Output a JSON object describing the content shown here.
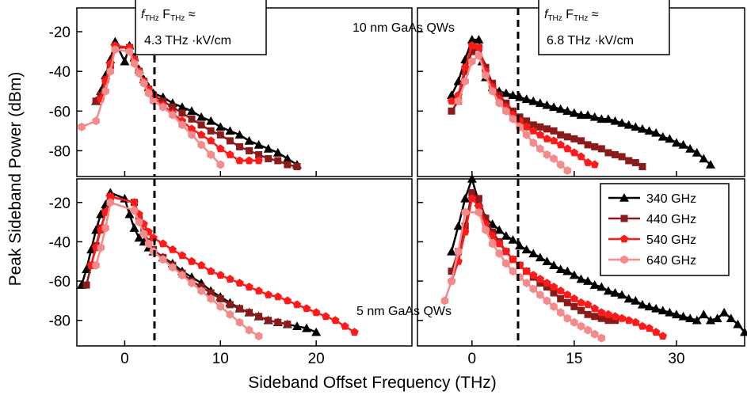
{
  "figure": {
    "xlabel": "Sideband Offset Frequency (THz)",
    "ylabel": "Peak Sideband Power (dBm)",
    "label_top": "10 nm GaAs QWs",
    "label_bottom": "5 nm GaAs QWs",
    "box_left_prefix_f": "f",
    "box_left_sub1": "THz",
    "box_left_F": " F",
    "box_left_sub2": "THz",
    "box_left_approx": " ≈",
    "box_left_value": "4.3 THz  ·kV/cm",
    "box_right_prefix_f": "f",
    "box_right_sub1": "THz",
    "box_right_F": " F",
    "box_right_sub2": "THz",
    "box_right_approx": " ≈",
    "box_right_value": "6.8 THz  ·kV/cm",
    "legend": [
      "340 GHz",
      "440 GHz",
      "540 GHz",
      "640 GHz"
    ],
    "colors": {
      "340 GHz": "#000000",
      "440 GHz": "#8b1a1a",
      "540 GHz": "#ff1a1a",
      "640 GHz": "#f48a8a"
    },
    "markers": {
      "340 GHz": "triangle",
      "440 GHz": "square",
      "540 GHz": "pentagon",
      "640 GHz": "hexagon"
    },
    "left_xticks": [
      "0",
      "10",
      "20"
    ],
    "right_xticks": [
      "0",
      "15",
      "30"
    ],
    "yticks": [
      "-20",
      "-40",
      "-60",
      "-80"
    ]
  },
  "chart_data": [
    {
      "type": "line",
      "panel": "top-left",
      "xlim": [
        -5,
        30
      ],
      "ylim": [
        -93,
        -8
      ],
      "xlabel": "",
      "ylabel": "",
      "series": [
        {
          "name": "340 GHz",
          "x": [
            -3,
            -2.5,
            -2,
            -1.5,
            -1,
            0,
            0.5,
            1,
            1.5,
            2,
            2.5,
            3,
            4,
            5,
            6,
            7,
            8,
            9,
            10,
            11,
            12,
            13,
            14,
            15,
            16,
            17,
            18
          ],
          "y": [
            -55,
            -50,
            -42,
            -34,
            -25,
            -35,
            -27,
            -33,
            -39,
            -44,
            -48,
            -51,
            -53,
            -56,
            -58,
            -60,
            -63,
            -65,
            -68,
            -70,
            -72,
            -75,
            -77,
            -79,
            -81,
            -84,
            -87
          ]
        },
        {
          "name": "440 GHz",
          "x": [
            -3,
            -2.5,
            -2,
            -1.5,
            -1,
            0.5,
            1,
            1.5,
            2,
            2.5,
            3,
            4,
            5,
            6,
            7,
            8,
            9,
            10,
            11,
            12,
            13,
            14,
            15,
            16,
            17,
            18
          ],
          "y": [
            -55,
            -52,
            -44,
            -37,
            -28,
            -28,
            -34,
            -40,
            -45,
            -49,
            -52,
            -55,
            -58,
            -61,
            -64,
            -67,
            -70,
            -72,
            -75,
            -78,
            -80,
            -82,
            -84,
            -85,
            -87,
            -88
          ]
        },
        {
          "name": "540 GHz",
          "x": [
            -2.5,
            -2,
            -1.5,
            -1,
            0.5,
            1,
            1.5,
            2,
            2.5,
            3,
            4,
            5,
            6,
            7,
            8,
            9,
            10,
            11,
            12,
            13,
            14
          ],
          "y": [
            -54,
            -45,
            -36,
            -27,
            -28,
            -34,
            -40,
            -45,
            -49,
            -53,
            -57,
            -61,
            -65,
            -69,
            -72,
            -75,
            -79,
            -82,
            -85,
            -85,
            -85
          ]
        },
        {
          "name": "640 GHz",
          "x": [
            -4.5,
            -3,
            -2,
            -1.5,
            -1,
            0.5,
            1,
            1.5,
            2,
            2.5,
            3,
            4,
            5,
            6,
            7,
            8,
            9,
            10
          ],
          "y": [
            -68,
            -65,
            -50,
            -40,
            -29,
            -30,
            -36,
            -41,
            -46,
            -51,
            -55,
            -58,
            -62,
            -67,
            -72,
            -77,
            -82,
            -87
          ]
        }
      ]
    },
    {
      "type": "line",
      "panel": "top-right",
      "xlim": [
        -8,
        40
      ],
      "ylim": [
        -93,
        -8
      ],
      "xlabel": "",
      "ylabel": "",
      "series": [
        {
          "name": "340 GHz",
          "x": [
            -3,
            -2,
            -1,
            0,
            1,
            1.5,
            2,
            3,
            4,
            5,
            6,
            7,
            8,
            9,
            10,
            11,
            12,
            13,
            14,
            15,
            16,
            17,
            18,
            19,
            20,
            21,
            22,
            23,
            24,
            25,
            26,
            27,
            28,
            29,
            30,
            31,
            32,
            33,
            34,
            35
          ],
          "y": [
            -52,
            -45,
            -34,
            -24,
            -24,
            -35,
            -43,
            -48,
            -50,
            -51,
            -52,
            -53,
            -54,
            -55,
            -56,
            -57,
            -58,
            -59,
            -60,
            -61,
            -62,
            -62,
            -63,
            -64,
            -64,
            -65,
            -66,
            -67,
            -68,
            -69,
            -70,
            -71,
            -73,
            -74,
            -76,
            -77,
            -79,
            -81,
            -84,
            -87
          ]
        },
        {
          "name": "440 GHz",
          "x": [
            -3,
            -2,
            -1,
            0,
            1,
            2,
            3,
            4,
            5,
            6,
            7,
            8,
            9,
            10,
            11,
            12,
            13,
            14,
            15,
            16,
            17,
            18,
            19,
            20,
            21,
            22,
            23,
            24,
            25
          ],
          "y": [
            -60,
            -55,
            -40,
            -30,
            -28,
            -38,
            -46,
            -52,
            -56,
            -60,
            -63,
            -65,
            -67,
            -68,
            -69,
            -70,
            -72,
            -73,
            -74,
            -75,
            -77,
            -78,
            -79,
            -81,
            -82,
            -83,
            -85,
            -86,
            -88
          ]
        },
        {
          "name": "540 GHz",
          "x": [
            -3,
            -2,
            -1,
            0,
            1,
            2,
            3,
            4,
            5,
            6,
            7,
            8,
            9,
            10,
            11,
            12,
            13,
            14,
            15,
            16,
            17,
            18
          ],
          "y": [
            -55,
            -52,
            -38,
            -27,
            -28,
            -40,
            -48,
            -54,
            -58,
            -62,
            -65,
            -68,
            -70,
            -72,
            -74,
            -75,
            -77,
            -79,
            -81,
            -83,
            -86,
            -87
          ]
        },
        {
          "name": "640 GHz",
          "x": [
            -2,
            -1,
            0,
            1,
            2,
            3,
            4,
            5,
            6,
            7,
            8,
            9,
            10,
            11,
            12,
            13,
            14
          ],
          "y": [
            -55,
            -45,
            -35,
            -32,
            -42,
            -50,
            -56,
            -60,
            -64,
            -68,
            -72,
            -76,
            -79,
            -82,
            -84,
            -87,
            -90
          ]
        }
      ]
    },
    {
      "type": "line",
      "panel": "bottom-left",
      "xlim": [
        -5,
        30
      ],
      "ylim": [
        -93,
        -8
      ],
      "xlabel": "",
      "ylabel": "",
      "series": [
        {
          "name": "340 GHz",
          "x": [
            -4.5,
            -4,
            -3.5,
            -3,
            -2.5,
            -2,
            -1.5,
            0,
            0.5,
            1,
            1.5,
            2,
            2.5,
            3,
            4,
            5,
            6,
            7,
            8,
            9,
            10,
            11,
            12,
            13,
            14,
            15,
            16,
            17,
            18,
            19,
            20
          ],
          "y": [
            -62,
            -54,
            -44,
            -34,
            -26,
            -21,
            -15,
            -18,
            -26,
            -33,
            -38,
            -40,
            -43,
            -45,
            -48,
            -51,
            -55,
            -58,
            -61,
            -65,
            -68,
            -71,
            -74,
            -76,
            -78,
            -80,
            -81,
            -82,
            -83,
            -84,
            -86
          ]
        },
        {
          "name": "440 GHz",
          "x": [
            -4,
            -3.5,
            -3,
            -2.5,
            -2,
            -1.5,
            1,
            1.5,
            2,
            2.5,
            3,
            4,
            5,
            6,
            7,
            8,
            9,
            10,
            11,
            12,
            13,
            14,
            15,
            16,
            17
          ],
          "y": [
            -62,
            -52,
            -42,
            -33,
            -25,
            -17,
            -20,
            -28,
            -35,
            -40,
            -44,
            -48,
            -52,
            -56,
            -60,
            -63,
            -66,
            -69,
            -72,
            -74,
            -76,
            -78,
            -80,
            -81,
            -82
          ]
        },
        {
          "name": "540 GHz",
          "x": [
            -3.5,
            -3,
            -2.5,
            -2,
            -1.5,
            1,
            1.5,
            2,
            2.5,
            3,
            4,
            5,
            6,
            7,
            8,
            9,
            10,
            11,
            12,
            13,
            14,
            15,
            16,
            17,
            18,
            19,
            20,
            21,
            22,
            23,
            24
          ],
          "y": [
            -52,
            -43,
            -34,
            -25,
            -17,
            -20,
            -26,
            -31,
            -35,
            -38,
            -41,
            -44,
            -47,
            -50,
            -52,
            -55,
            -57,
            -59,
            -61,
            -63,
            -65,
            -67,
            -68,
            -70,
            -72,
            -74,
            -76,
            -78,
            -80,
            -83,
            -86
          ]
        },
        {
          "name": "640 GHz",
          "x": [
            -3,
            -2.5,
            -2,
            -1.5,
            1,
            1.5,
            2,
            2.5,
            3,
            4,
            5,
            6,
            7,
            8,
            9,
            10,
            11,
            12,
            13,
            14
          ],
          "y": [
            -52,
            -43,
            -33,
            -20,
            -24,
            -30,
            -36,
            -41,
            -45,
            -49,
            -53,
            -57,
            -61,
            -65,
            -69,
            -73,
            -77,
            -81,
            -85,
            -88
          ]
        }
      ]
    },
    {
      "type": "line",
      "panel": "bottom-right",
      "xlim": [
        -8,
        40
      ],
      "ylim": [
        -93,
        -8
      ],
      "xlabel": "",
      "ylabel": "",
      "series": [
        {
          "name": "340 GHz",
          "x": [
            -3,
            -2,
            -1,
            0,
            1,
            2,
            3,
            4,
            5,
            6,
            7,
            8,
            9,
            10,
            11,
            12,
            13,
            14,
            15,
            16,
            17,
            18,
            19,
            20,
            21,
            22,
            23,
            24,
            25,
            26,
            27,
            28,
            29,
            30,
            31,
            32,
            33,
            34,
            35,
            36,
            37,
            38,
            39,
            40
          ],
          "y": [
            -45,
            -32,
            -18,
            -8,
            -20,
            -28,
            -31,
            -34,
            -37,
            -39,
            -42,
            -44,
            -46,
            -48,
            -50,
            -52,
            -54,
            -55,
            -57,
            -59,
            -60,
            -62,
            -63,
            -65,
            -66,
            -67,
            -69,
            -70,
            -72,
            -73,
            -74,
            -75,
            -76,
            -77,
            -78,
            -79,
            -80,
            -77,
            -80,
            -79,
            -76,
            -79,
            -82,
            -86
          ]
        },
        {
          "name": "440 GHz",
          "x": [
            -3,
            -2,
            -1,
            0,
            1,
            2,
            3,
            4,
            5,
            6,
            7,
            8,
            9,
            10,
            11,
            12,
            13,
            14,
            15,
            16,
            17,
            18,
            19,
            20,
            21
          ],
          "y": [
            -55,
            -45,
            -32,
            -15,
            -18,
            -28,
            -35,
            -40,
            -45,
            -49,
            -52,
            -55,
            -58,
            -61,
            -63,
            -66,
            -69,
            -71,
            -73,
            -75,
            -77,
            -78,
            -79,
            -80,
            -80
          ]
        },
        {
          "name": "540 GHz",
          "x": [
            -3,
            -2,
            -1,
            0,
            1,
            2,
            3,
            4,
            5,
            6,
            7,
            8,
            9,
            10,
            11,
            12,
            13,
            14,
            15,
            16,
            17,
            18,
            19,
            20,
            21,
            22,
            23,
            24,
            25,
            26,
            27,
            28
          ],
          "y": [
            -60,
            -50,
            -35,
            -18,
            -22,
            -31,
            -37,
            -41,
            -45,
            -49,
            -52,
            -55,
            -57,
            -59,
            -61,
            -63,
            -65,
            -67,
            -69,
            -71,
            -72,
            -74,
            -76,
            -77,
            -78,
            -79,
            -80,
            -81,
            -83,
            -84,
            -86,
            -88
          ]
        },
        {
          "name": "640 GHz",
          "x": [
            -4,
            -3,
            -2,
            -1,
            1,
            2,
            3,
            4,
            5,
            6,
            7,
            8,
            9,
            10,
            11,
            12,
            13,
            14,
            15,
            16,
            17,
            18,
            19
          ],
          "y": [
            -70,
            -60,
            -45,
            -25,
            -25,
            -34,
            -41,
            -46,
            -51,
            -55,
            -58,
            -61,
            -64,
            -67,
            -70,
            -73,
            -76,
            -79,
            -81,
            -83,
            -85,
            -87,
            -89
          ]
        }
      ]
    }
  ]
}
